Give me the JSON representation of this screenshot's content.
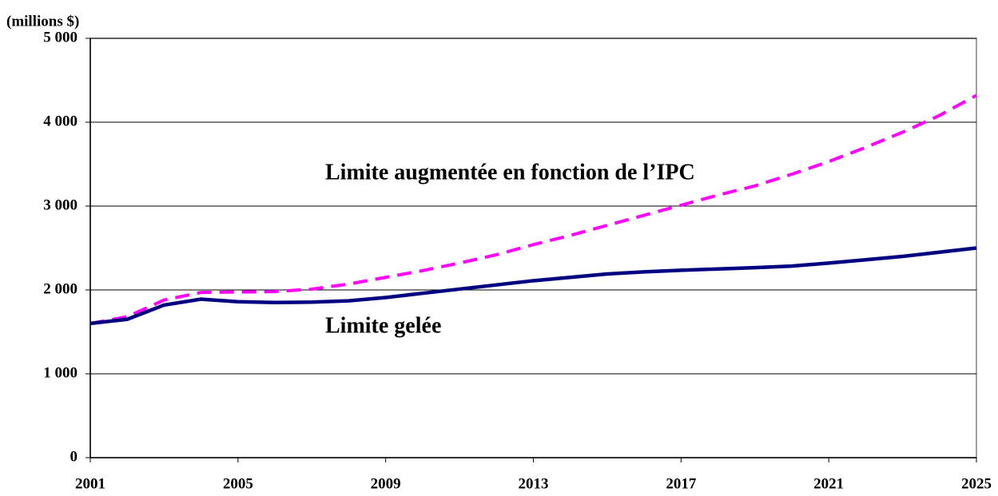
{
  "chart_data": {
    "type": "line",
    "y_axis_label": "(millions $)",
    "x": [
      2001,
      2002,
      2003,
      2004,
      2005,
      2006,
      2007,
      2008,
      2009,
      2010,
      2011,
      2012,
      2013,
      2014,
      2015,
      2016,
      2017,
      2018,
      2019,
      2020,
      2021,
      2022,
      2023,
      2024,
      2025
    ],
    "series": [
      {
        "name": "Limite augmentée en fonction de l’IPC",
        "color": "#ff00ff",
        "dashed": true,
        "values": [
          1600,
          1680,
          1880,
          1970,
          1975,
          1980,
          2010,
          2070,
          2150,
          2230,
          2320,
          2420,
          2540,
          2650,
          2770,
          2890,
          3010,
          3130,
          3240,
          3380,
          3530,
          3700,
          3880,
          4080,
          4320
        ]
      },
      {
        "name": "Limite gelée",
        "color": "#000080",
        "dashed": false,
        "values": [
          1600,
          1650,
          1820,
          1890,
          1860,
          1850,
          1855,
          1870,
          1910,
          1960,
          2010,
          2060,
          2110,
          2150,
          2190,
          2215,
          2235,
          2250,
          2265,
          2285,
          2320,
          2360,
          2400,
          2450,
          2500
        ]
      }
    ],
    "xlim": [
      2001,
      2025
    ],
    "xticks": [
      2001,
      2005,
      2009,
      2013,
      2017,
      2021,
      2025
    ],
    "ylim": [
      0,
      5000
    ],
    "yticks": [
      0,
      {
        "value": 1000,
        "label": "1 000"
      },
      {
        "value": 2000,
        "label": "2 000"
      },
      {
        "value": 3000,
        "label": "3 000"
      },
      {
        "value": 4000,
        "label": "4 000"
      },
      {
        "value": 5000,
        "label": "5 000"
      }
    ],
    "grid": true
  }
}
